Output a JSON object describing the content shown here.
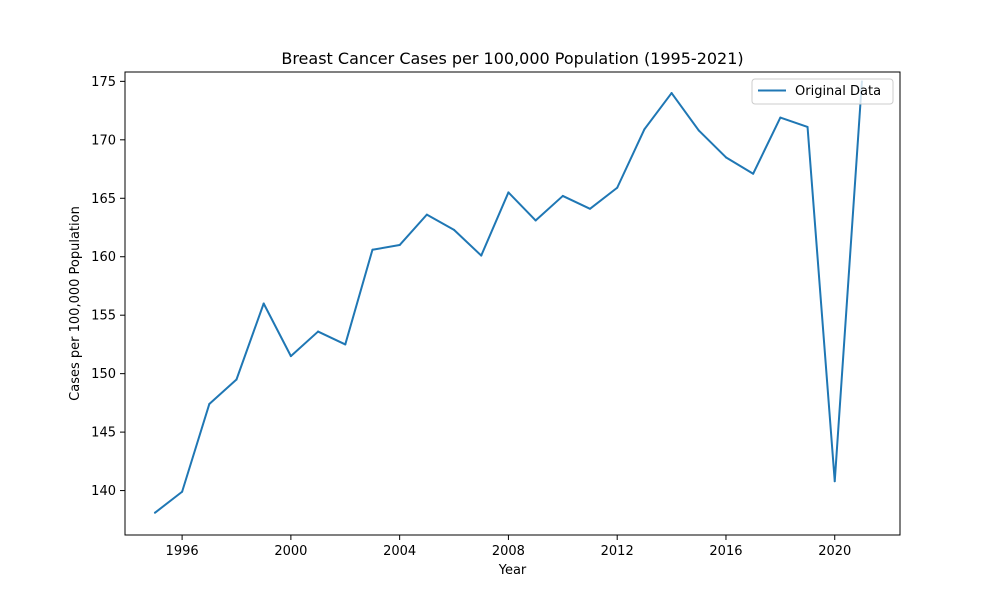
{
  "chart_data": {
    "type": "line",
    "title": "Breast Cancer Cases per 100,000 Population (1995-2021)",
    "xlabel": "Year",
    "ylabel": "Cases per 100,000 Population",
    "xlim": [
      1993.9,
      2022.4
    ],
    "ylim": [
      136.2,
      175.8
    ],
    "xticks": [
      1996,
      2000,
      2004,
      2008,
      2012,
      2016,
      2020
    ],
    "yticks": [
      140,
      145,
      150,
      155,
      160,
      165,
      170,
      175
    ],
    "grid": false,
    "legend_position": "top-right",
    "x": [
      1995,
      1996,
      1997,
      1998,
      1999,
      2000,
      2001,
      2002,
      2003,
      2004,
      2005,
      2006,
      2007,
      2008,
      2009,
      2010,
      2011,
      2012,
      2013,
      2014,
      2015,
      2016,
      2017,
      2018,
      2019,
      2020,
      2021
    ],
    "series": [
      {
        "name": "Original Data",
        "color": "#1f77b4",
        "values": [
          138.1,
          139.9,
          147.4,
          149.5,
          156.0,
          151.5,
          153.6,
          152.5,
          160.6,
          161.0,
          163.6,
          162.3,
          160.1,
          165.5,
          163.1,
          165.2,
          164.1,
          165.9,
          170.9,
          174.0,
          170.8,
          168.5,
          167.1,
          171.9,
          171.1,
          140.8,
          175.0
        ]
      }
    ]
  }
}
